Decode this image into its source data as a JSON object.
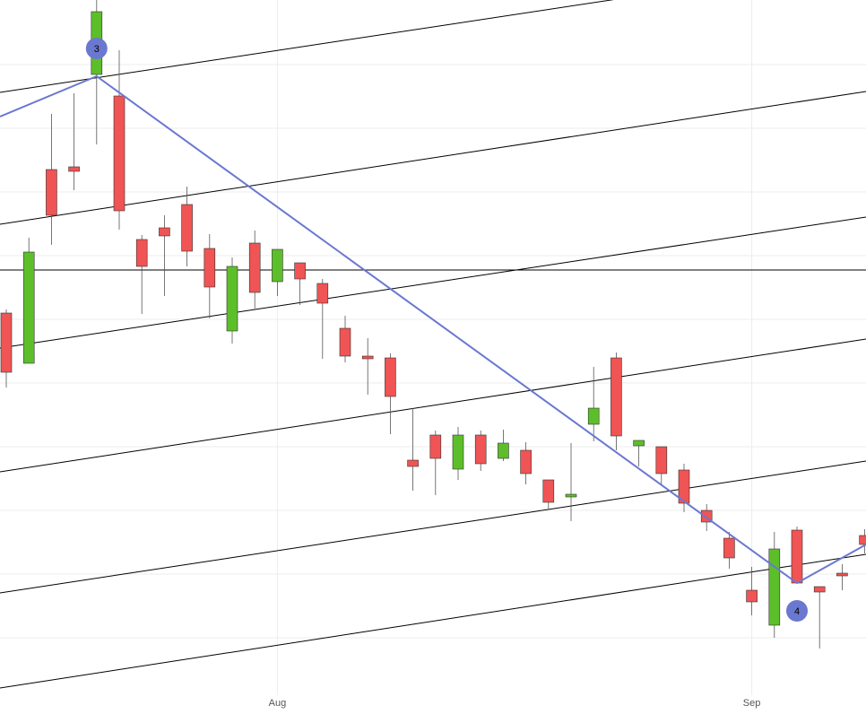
{
  "chart_data": {
    "type": "candlestick",
    "categories": [
      null,
      null,
      null,
      null,
      null,
      null,
      null,
      null,
      null,
      null,
      null,
      null,
      "Aug",
      null,
      null,
      null,
      null,
      null,
      null,
      null,
      null,
      null,
      null,
      null,
      null,
      null,
      null,
      null,
      null,
      null,
      null,
      null,
      null,
      "Sep",
      null,
      null,
      null,
      null,
      null
    ],
    "open": [
      426,
      370,
      586,
      589,
      692,
      668,
      508,
      521,
      547,
      498,
      406,
      504,
      461,
      482,
      459,
      409,
      378,
      376,
      262,
      290,
      252,
      290,
      264,
      273,
      240,
      221,
      302,
      376,
      278,
      277,
      251,
      206,
      175,
      117,
      78,
      184,
      121,
      136,
      178
    ],
    "high": [
      430,
      510,
      648,
      671,
      775,
      719,
      513,
      535,
      567,
      514,
      488,
      518,
      497,
      482,
      464,
      423,
      398,
      381,
      320,
      295,
      299,
      295,
      296,
      282,
      240,
      281,
      366,
      382,
      284,
      277,
      258,
      213,
      182,
      143,
      182,
      188,
      121,
      146,
      185
    ],
    "low": [
      343,
      370,
      502,
      563,
      614,
      519,
      425,
      445,
      478,
      420,
      392,
      431,
      445,
      435,
      375,
      371,
      335,
      291,
      228,
      223,
      240,
      250,
      261,
      235,
      208,
      194,
      283,
      273,
      255,
      235,
      204,
      183,
      141,
      89,
      64,
      125,
      52,
      117,
      158
    ],
    "close": [
      360,
      494,
      535,
      584,
      762,
      540,
      478,
      512,
      495,
      455,
      478,
      449,
      497,
      464,
      437,
      378,
      375,
      333,
      255,
      264,
      290,
      258,
      281,
      247,
      215,
      224,
      320,
      289,
      284,
      247,
      214,
      193,
      153,
      104,
      163,
      125,
      115,
      133,
      168
    ],
    "up_color": "#5cbf2a",
    "down_color": "#f05454",
    "ylim": [
      0,
      775
    ],
    "ygrid": [
      64,
      135,
      206,
      277,
      348,
      419,
      490,
      561,
      632,
      703
    ],
    "horizontal_line": 474,
    "trend_lines": [
      {
        "start": [
          -0.28,
          672
        ],
        "end": [
          38.06,
          818
        ]
      },
      {
        "start": [
          -0.28,
          525
        ],
        "end": [
          38.06,
          673
        ]
      },
      {
        "start": [
          -0.28,
          387
        ],
        "end": [
          38.06,
          533
        ]
      },
      {
        "start": [
          -0.28,
          249
        ],
        "end": [
          38.06,
          397
        ]
      },
      {
        "start": [
          -0.28,
          114
        ],
        "end": [
          38.06,
          261
        ]
      },
      {
        "start": [
          -0.28,
          8
        ],
        "end": [
          38.06,
          157
        ]
      }
    ],
    "zigzag": {
      "x": [
        -0.28,
        4,
        35,
        38.06
      ],
      "values": [
        645,
        690,
        125,
        168
      ],
      "color": "#6b78d0"
    },
    "markers": [
      {
        "label": "3",
        "index": 4,
        "value": 721
      },
      {
        "label": "4",
        "index": 35,
        "value": 94
      }
    ]
  }
}
